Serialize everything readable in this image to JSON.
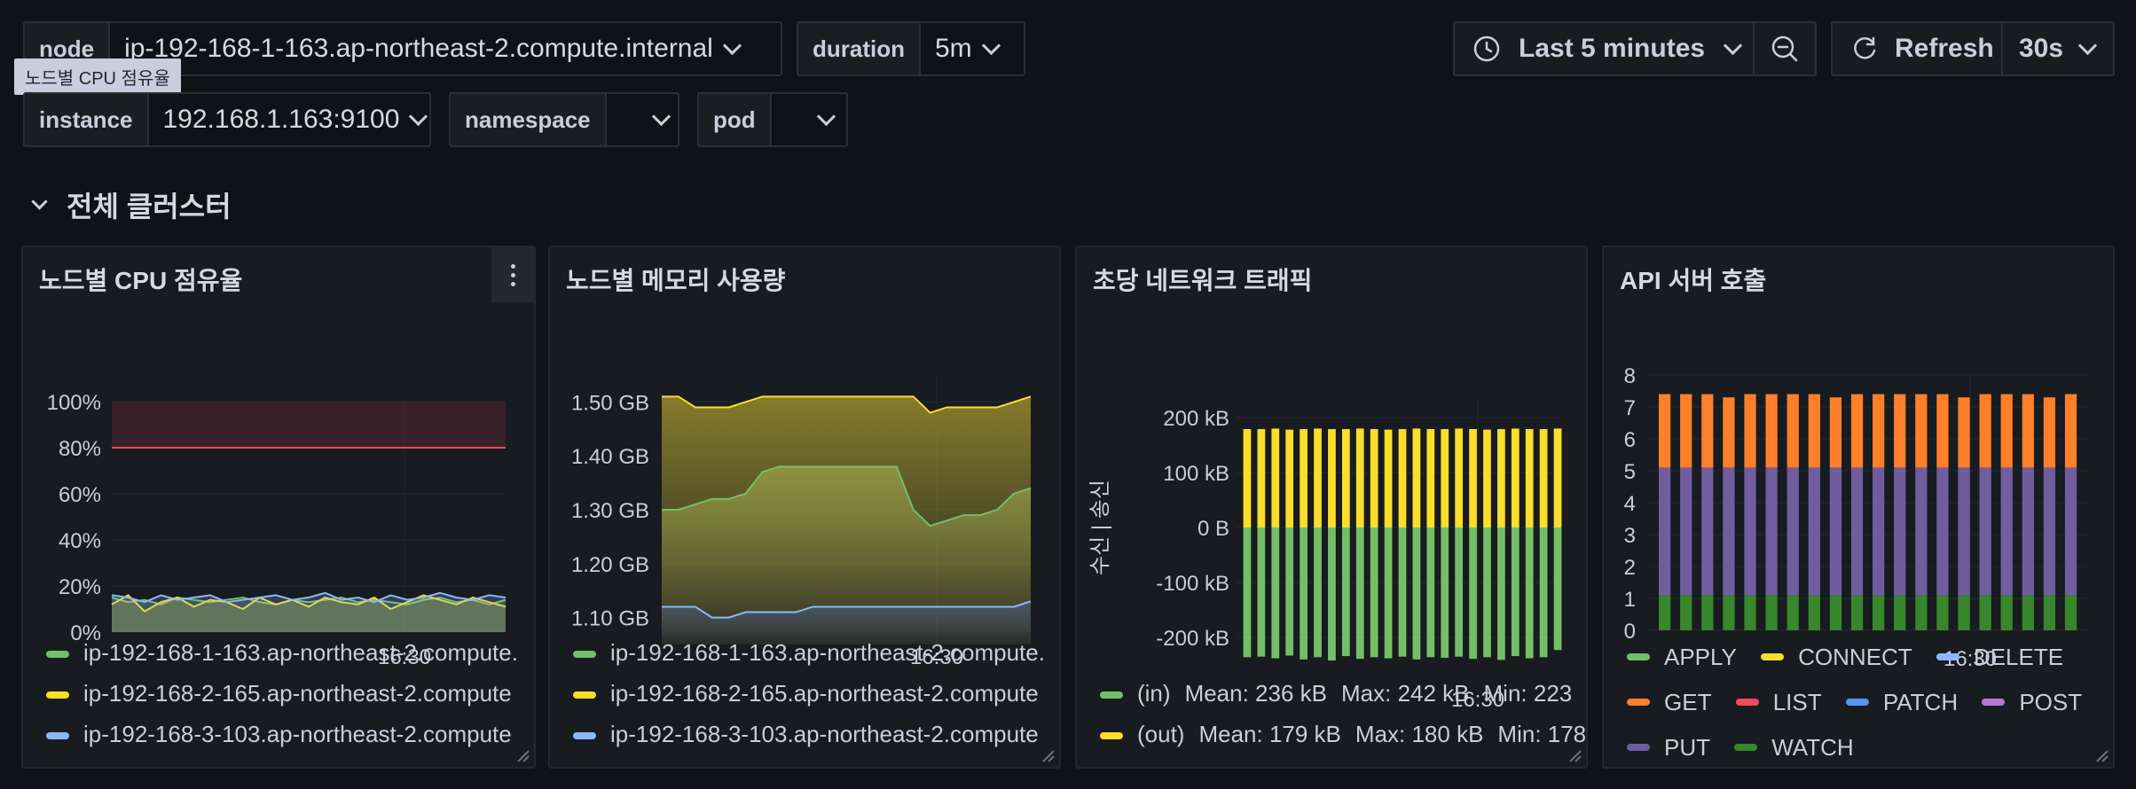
{
  "variables": {
    "node": {
      "label": "node",
      "value": "ip-192-168-1-163.ap-northeast-2.compute.internal"
    },
    "duration": {
      "label": "duration",
      "value": "5m"
    },
    "instance": {
      "label": "instance",
      "value": "192.168.1.163:9100"
    },
    "namespace": {
      "label": "namespace",
      "value": ""
    },
    "pod": {
      "label": "pod",
      "value": ""
    }
  },
  "tooltip": "노드별 CPU 점유율",
  "toolbar": {
    "time_range": "Last 5 minutes",
    "refresh_label": "Refresh",
    "refresh_interval": "30s"
  },
  "row_title": "전체 클러스터",
  "panels": {
    "cpu": {
      "title": "노드별 CPU 점유율",
      "yticks": [
        "100%",
        "80%",
        "60%",
        "40%",
        "20%",
        "0%"
      ],
      "xtick": "16:30",
      "legend": [
        "ip-192-168-1-163.ap-northeast-2.compute.",
        "ip-192-168-2-165.ap-northeast-2.compute",
        "ip-192-168-3-103.ap-northeast-2.compute"
      ]
    },
    "memory": {
      "title": "노드별 메모리 사용량",
      "yticks": [
        "1.50 GB",
        "1.40 GB",
        "1.30 GB",
        "1.20 GB",
        "1.10 GB"
      ],
      "xtick": "16:30",
      "legend": [
        "ip-192-168-1-163.ap-northeast-2.compute.",
        "ip-192-168-2-165.ap-northeast-2.compute",
        "ip-192-168-3-103.ap-northeast-2.compute"
      ]
    },
    "network": {
      "title": "초당 네트워크 트래픽",
      "yticks": [
        "200 kB",
        "100 kB",
        "0 B",
        "-100 kB",
        "-200 kB"
      ],
      "ylabel": "수신 | 송신",
      "xtick": "16:30",
      "legend": [
        {
          "name": "(in)",
          "mean": "Mean: 236 kB",
          "max": "Max: 242 kB",
          "min": "Min: 223"
        },
        {
          "name": "(out)",
          "mean": "Mean: 179 kB",
          "max": "Max: 180 kB",
          "min": "Min: 178"
        }
      ]
    },
    "api": {
      "title": "API 서버 호출",
      "yticks": [
        "8",
        "7",
        "6",
        "5",
        "4",
        "3",
        "2",
        "1",
        "0"
      ],
      "xtick": "16:30",
      "legend": [
        "APPLY",
        "CONNECT",
        "DELETE",
        "GET",
        "LIST",
        "PATCH",
        "POST",
        "PUT",
        "WATCH"
      ]
    }
  },
  "colors": {
    "green": "#73bf69",
    "yellow": "#fade2a",
    "blue": "#8ab8ff",
    "orange": "#ff7f2a",
    "red": "#f2495c",
    "patch_blue": "#5794f2",
    "purple": "#b877d9",
    "violet": "#705da0",
    "dark_green": "#37872d",
    "threshold": "#f2495c"
  },
  "chart_data": [
    {
      "type": "line",
      "title": "노드별 CPU 점유율",
      "ylim": [
        0,
        100
      ],
      "series": [
        {
          "name": "ip-192-168-1-163.ap-northeast-2.compute.",
          "values": [
            15,
            13,
            14,
            12,
            15,
            14,
            13,
            14,
            15,
            13,
            12,
            14,
            13,
            14,
            15,
            13,
            14,
            13,
            12,
            14,
            15,
            13,
            14,
            12,
            14
          ]
        },
        {
          "name": "ip-192-168-2-165.ap-northeast-2.compute",
          "values": [
            12,
            16,
            9,
            13,
            15,
            11,
            14,
            13,
            10,
            15,
            12,
            14,
            11,
            15,
            13,
            12,
            15,
            10,
            13,
            16,
            14,
            12,
            15,
            13,
            11
          ]
        },
        {
          "name": "ip-192-168-3-103.ap-northeast-2.compute",
          "values": [
            16,
            15,
            13,
            16,
            14,
            15,
            16,
            13,
            14,
            15,
            16,
            14,
            15,
            17,
            14,
            15,
            13,
            16,
            14,
            15,
            17,
            15,
            14,
            16,
            15
          ]
        }
      ]
    },
    {
      "type": "area",
      "title": "노드별 메모리 사용량",
      "series": [
        {
          "name": "ip-192-168-1-163.ap-northeast-2.compute.",
          "values": [
            1.3,
            1.3,
            1.31,
            1.32,
            1.32,
            1.33,
            1.37,
            1.38,
            1.38,
            1.38,
            1.38,
            1.38,
            1.38,
            1.38,
            1.38,
            1.3,
            1.27,
            1.28,
            1.29,
            1.29,
            1.3,
            1.33,
            1.34
          ]
        },
        {
          "name": "ip-192-168-2-165.ap-northeast-2.compute",
          "values": [
            1.51,
            1.51,
            1.49,
            1.49,
            1.49,
            1.5,
            1.51,
            1.51,
            1.51,
            1.51,
            1.51,
            1.51,
            1.51,
            1.51,
            1.51,
            1.51,
            1.48,
            1.49,
            1.49,
            1.49,
            1.49,
            1.5,
            1.51
          ]
        },
        {
          "name": "ip-192-168-3-103.ap-northeast-2.compute",
          "values": [
            1.12,
            1.12,
            1.12,
            1.1,
            1.1,
            1.11,
            1.11,
            1.11,
            1.11,
            1.12,
            1.12,
            1.12,
            1.12,
            1.12,
            1.12,
            1.12,
            1.12,
            1.12,
            1.12,
            1.12,
            1.12,
            1.12,
            1.13
          ]
        }
      ]
    },
    {
      "type": "bar",
      "title": "초당 네트워크 트래픽",
      "ylim": [
        -250,
        250
      ],
      "series": [
        {
          "name": "(in)",
          "values": [
            -236,
            -235,
            -238,
            -233,
            -240,
            -236,
            -242,
            -234,
            -239,
            -236,
            -238,
            -235,
            -240,
            -236,
            -237,
            -235,
            -239,
            -236,
            -241,
            -234,
            -238,
            -236,
            -223
          ]
        },
        {
          "name": "(out)",
          "values": [
            179,
            179,
            180,
            178,
            179,
            180,
            179,
            179,
            180,
            179,
            178,
            179,
            180,
            179,
            179,
            180,
            179,
            178,
            179,
            180,
            179,
            179,
            180
          ]
        }
      ]
    },
    {
      "type": "bar",
      "title": "API 서버 호출",
      "ylim": [
        0,
        8
      ],
      "stacked": true,
      "series": [
        {
          "name": "WATCH",
          "values": [
            1.1,
            1.1,
            1.1,
            1.1,
            1.1,
            1.1,
            1.1,
            1.1,
            1.1,
            1.1,
            1.1,
            1.1,
            1.1,
            1.1,
            1.1,
            1.1,
            1.1,
            1.1,
            1.1,
            1.1
          ]
        },
        {
          "name": "PUT",
          "values": [
            4.0,
            4.0,
            4.0,
            4.0,
            4.0,
            4.0,
            4.0,
            4.0,
            4.0,
            4.0,
            4.0,
            4.0,
            4.0,
            4.0,
            4.0,
            4.0,
            4.0,
            4.0,
            4.0,
            4.0
          ]
        },
        {
          "name": "GET",
          "values": [
            2.3,
            2.3,
            2.3,
            2.2,
            2.3,
            2.3,
            2.3,
            2.3,
            2.2,
            2.3,
            2.3,
            2.3,
            2.3,
            2.3,
            2.2,
            2.3,
            2.3,
            2.3,
            2.2,
            2.3
          ]
        }
      ]
    }
  ]
}
